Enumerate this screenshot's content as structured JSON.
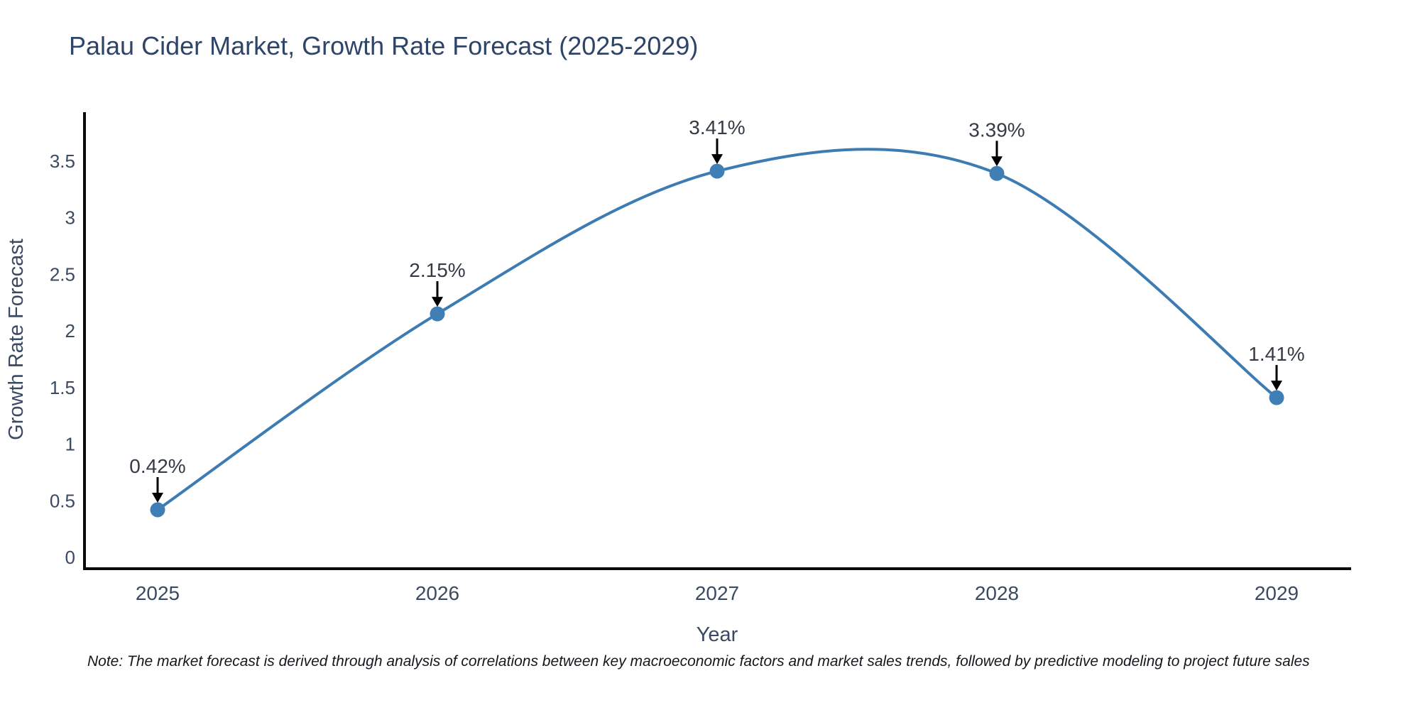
{
  "title": "Palau Cider Market, Growth Rate Forecast (2025-2029)",
  "chart_data": {
    "type": "line",
    "title": "Palau Cider Market, Growth Rate Forecast (2025-2029)",
    "x": [
      2025,
      2026,
      2027,
      2028,
      2029
    ],
    "series": [
      {
        "name": "Growth Rate Forecast",
        "values": [
          0.42,
          2.15,
          3.41,
          3.39,
          1.41
        ],
        "point_labels": [
          "0.42%",
          "2.15%",
          "3.41%",
          "3.39%",
          "1.41%"
        ]
      }
    ],
    "xlabel": "Year",
    "ylabel": "Growth Rate Forecast",
    "xtick_labels": [
      "2025",
      "2026",
      "2027",
      "2028",
      "2029"
    ],
    "ytick_values": [
      0,
      0.5,
      1,
      1.5,
      2,
      2.5,
      3,
      3.5
    ],
    "ytick_labels": [
      "0",
      "0.5",
      "1",
      "1.5",
      "2",
      "2.5",
      "3",
      "3.5"
    ],
    "ylim": [
      -0.11,
      3.95
    ],
    "xlim": [
      2024.73,
      2029.27
    ],
    "grid": false,
    "legend_position": "none",
    "curve": "spline",
    "markers": true,
    "annotation_style": "arrow-down",
    "line_color": "#3d7cb2",
    "marker_color": "#3f7fb5",
    "axis_color": "#0a0a0a",
    "arrow_color": "#000000",
    "title_color": "#2e4468",
    "axis_text_color": "#3a4a63",
    "annotation_text_color": "#343b46"
  },
  "note": {
    "text": "Note: The market forecast is derived through analysis of correlations between key macroeconomic factors and market sales trends, followed by predictive modeling to project future sales"
  }
}
